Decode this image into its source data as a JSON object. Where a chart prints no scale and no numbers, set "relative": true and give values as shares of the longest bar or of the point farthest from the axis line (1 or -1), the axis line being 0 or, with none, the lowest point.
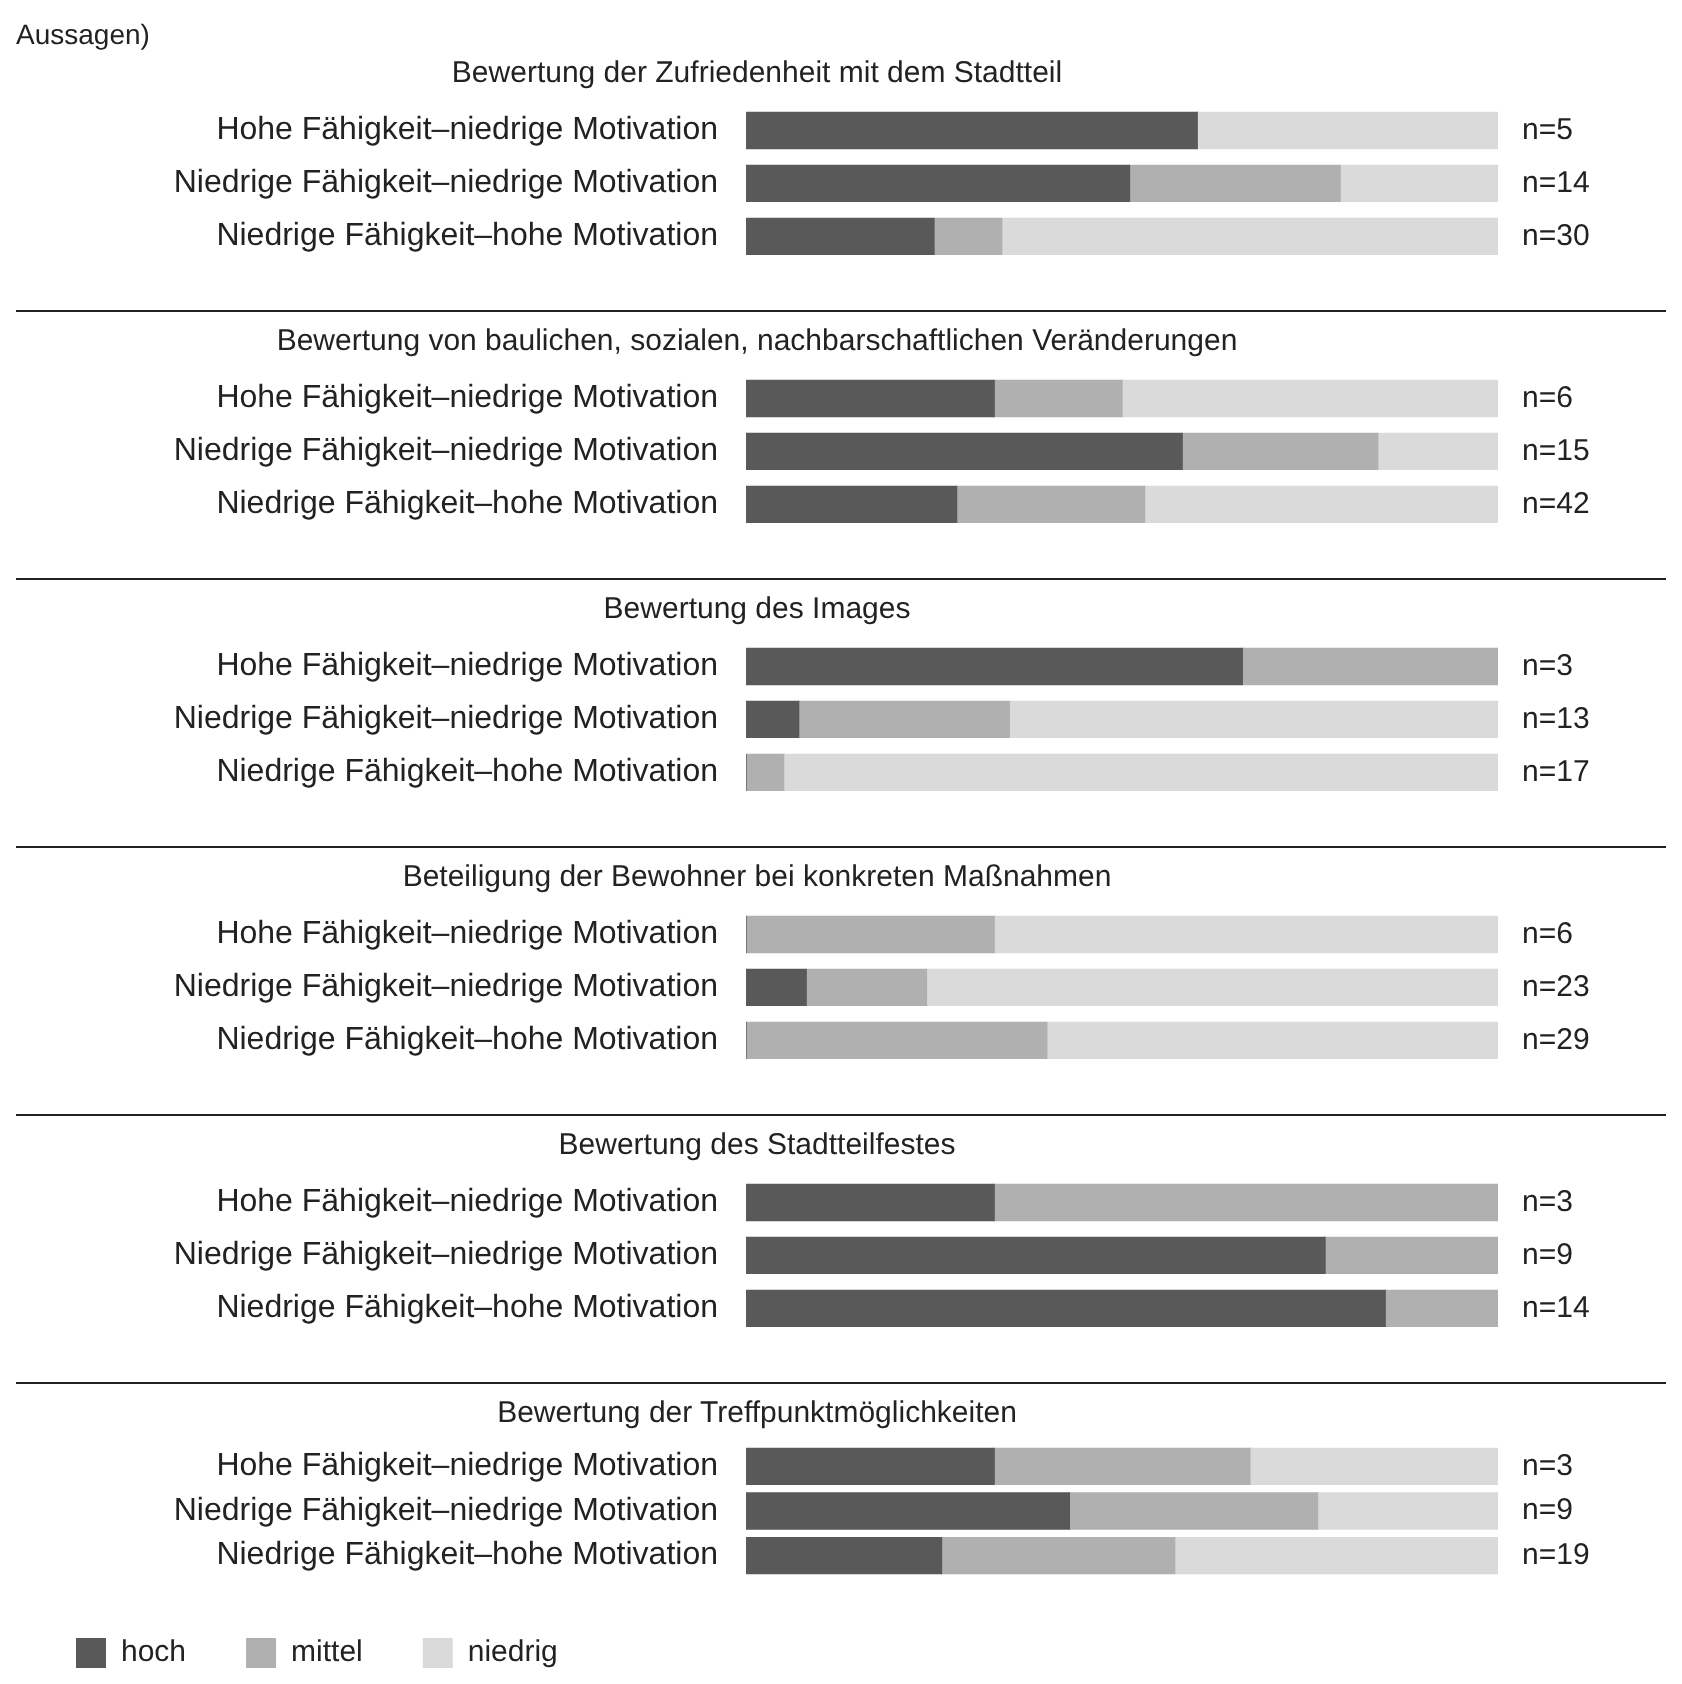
{
  "chart_data": [
    {
      "type": "bar",
      "orientation": "horizontal",
      "stacked": true,
      "relative": true,
      "grid": false,
      "legend": false,
      "title": "Bewertung der Zufriedenheit mit dem Stadtteil",
      "annotations": [
        "Aussagen)",
        "n=5",
        "n=14",
        "n=30"
      ],
      "categories": [
        "Hohe Fähigkeit–niedrige Motivation",
        "Niedrige Fähigkeit–niedrige Motivation",
        "Niedrige Fähigkeit–hohe Motivation"
      ],
      "series": [
        {
          "color": "#595959",
          "values": [
            0.6,
            0.51,
            0.25
          ]
        },
        {
          "color": "#b0b0b0",
          "values": [
            0,
            0.28,
            0.09
          ]
        },
        {
          "color": "#dadada",
          "values": [
            0.4,
            0.21,
            0.66
          ]
        }
      ]
    },
    {
      "type": "bar",
      "orientation": "horizontal",
      "stacked": true,
      "relative": true,
      "grid": false,
      "legend": false,
      "title": "Bewertung von baulichen, sozialen, nachbarschaftlichen Veränderungen",
      "annotations": [
        "n=6",
        "n=15",
        "n=42"
      ],
      "categories": [
        "Hohe Fähigkeit–niedrige Motivation",
        "Niedrige Fähigkeit–niedrige Motivation",
        "Niedrige Fähigkeit–hohe Motivation"
      ],
      "series": [
        {
          "color": "#595959",
          "values": [
            0.33,
            0.58,
            0.28
          ]
        },
        {
          "color": "#b0b0b0",
          "values": [
            0.17,
            0.26,
            0.25
          ]
        },
        {
          "color": "#dadada",
          "values": [
            0.5,
            0.16,
            0.47
          ]
        }
      ]
    },
    {
      "type": "bar",
      "orientation": "horizontal",
      "stacked": true,
      "relative": true,
      "grid": false,
      "legend": false,
      "title": "Bewertung des Images",
      "annotations": [
        "n=3",
        "n=13",
        "n=17"
      ],
      "categories": [
        "Hohe Fähigkeit–niedrige Motivation",
        "Niedrige Fähigkeit–niedrige Motivation",
        "Niedrige Fähigkeit–hohe Motivation"
      ],
      "series": [
        {
          "color": "#595959",
          "values": [
            0.66,
            0.07,
            0
          ]
        },
        {
          "color": "#b0b0b0",
          "values": [
            0.34,
            0.28,
            0.05
          ]
        },
        {
          "color": "#dadada",
          "values": [
            0,
            0.65,
            0.95
          ]
        }
      ]
    },
    {
      "type": "bar",
      "orientation": "horizontal",
      "stacked": true,
      "relative": true,
      "grid": false,
      "legend": false,
      "title": "Beteiligung der Bewohner bei konkreten Maßnahmen",
      "annotations": [
        "n=6",
        "n=23",
        "n=29"
      ],
      "categories": [
        "Hohe Fähigkeit–niedrige Motivation",
        "Niedrige Fähigkeit–niedrige Motivation",
        "Niedrige Fähigkeit–hohe Motivation"
      ],
      "series": [
        {
          "color": "#595959",
          "values": [
            0,
            0.08,
            0
          ]
        },
        {
          "color": "#b0b0b0",
          "values": [
            0.33,
            0.16,
            0.4
          ]
        },
        {
          "color": "#dadada",
          "values": [
            0.67,
            0.76,
            0.6
          ]
        }
      ]
    },
    {
      "type": "bar",
      "orientation": "horizontal",
      "stacked": true,
      "relative": true,
      "grid": false,
      "legend": false,
      "title": "Bewertung des Stadtteilfestes",
      "annotations": [
        "n=3",
        "n=9",
        "n=14"
      ],
      "categories": [
        "Hohe Fähigkeit–niedrige Motivation",
        "Niedrige Fähigkeit–niedrige Motivation",
        "Niedrige Fähigkeit–hohe Motivation"
      ],
      "series": [
        {
          "color": "#595959",
          "values": [
            0.33,
            0.77,
            0.85
          ]
        },
        {
          "color": "#b0b0b0",
          "values": [
            0.67,
            0.23,
            0.15
          ]
        },
        {
          "color": "#dadada",
          "values": [
            0,
            0,
            0
          ]
        }
      ]
    },
    {
      "type": "bar",
      "orientation": "horizontal",
      "stacked": true,
      "relative": true,
      "grid": false,
      "legend": "bottom left",
      "title": "Bewertung der Treffpunktmöglichkeiten",
      "annotations": [
        "n=3",
        "n=9",
        "n=19"
      ],
      "categories": [
        "Hohe Fähigkeit–niedrige Motivation",
        "Niedrige Fähigkeit–niedrige Motivation",
        "Niedrige Fähigkeit–hohe Motivation"
      ],
      "series": [
        {
          "name": "hoch",
          "color": "#595959",
          "values": [
            0.33,
            0.43,
            0.26
          ]
        },
        {
          "name": "mittel",
          "color": "#b0b0b0",
          "values": [
            0.34,
            0.33,
            0.31
          ]
        },
        {
          "name": "niedrig",
          "color": "#dadada",
          "values": [
            0.33,
            0.24,
            0.43
          ]
        }
      ]
    }
  ]
}
